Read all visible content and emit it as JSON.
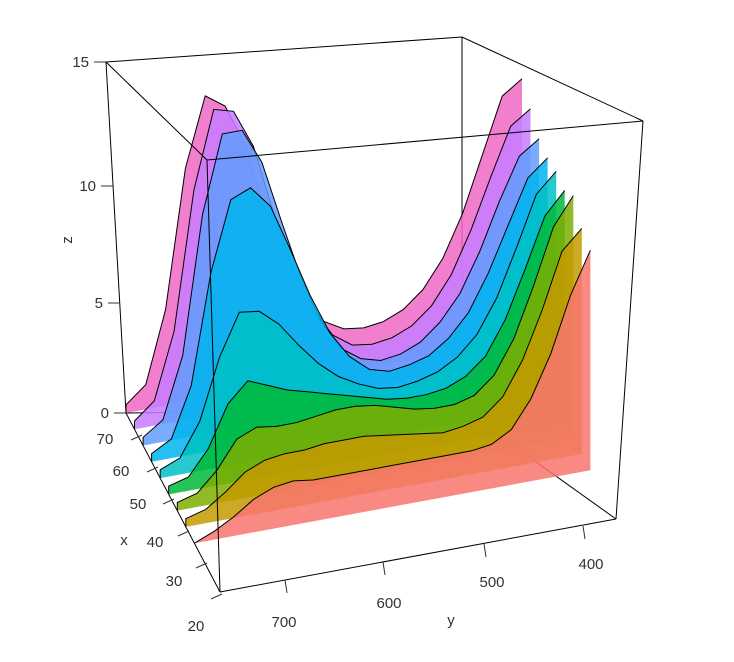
{
  "chart_data": {
    "type": "area",
    "subtype": "3d-ribbon",
    "axes": {
      "x": {
        "label": "x",
        "ticks": [
          20,
          30,
          40,
          50,
          60,
          70
        ],
        "range": [
          20,
          75
        ]
      },
      "y": {
        "label": "y",
        "ticks": [
          700,
          600,
          500,
          400
        ],
        "range": [
          760,
          360
        ],
        "reversed": true
      },
      "z": {
        "label": "z",
        "ticks": [
          0,
          5,
          10,
          15
        ],
        "range": [
          0,
          15
        ]
      }
    },
    "grid": false,
    "legend": "none",
    "y": [
      760,
      740,
      720,
      700,
      680,
      660,
      640,
      620,
      600,
      580,
      560,
      540,
      520,
      500,
      480,
      460,
      440,
      420,
      400,
      380,
      360
    ],
    "series": [
      {
        "x": 75,
        "color": "#F067C6",
        "values": [
          0.3,
          0.9,
          3.5,
          8.5,
          11.0,
          10.5,
          9.0,
          6.5,
          4.5,
          3.0,
          2.0,
          1.6,
          1.5,
          1.6,
          1.9,
          2.5,
          3.5,
          5.0,
          7.0,
          9.0,
          9.5
        ]
      },
      {
        "x": 70,
        "color": "#C77CFF",
        "values": [
          0.3,
          0.9,
          3.3,
          8.3,
          11.1,
          10.9,
          9.5,
          7.0,
          4.8,
          3.2,
          2.1,
          1.6,
          1.5,
          1.6,
          1.9,
          2.5,
          3.5,
          5.0,
          6.8,
          8.5,
          9.0
        ]
      },
      {
        "x": 65,
        "color": "#619CFF",
        "values": [
          0.3,
          0.8,
          3.0,
          8.0,
          10.8,
          10.8,
          9.5,
          7.2,
          5.0,
          3.3,
          2.2,
          1.7,
          1.5,
          1.6,
          1.9,
          2.5,
          3.4,
          4.8,
          6.5,
          8.0,
          8.5
        ]
      },
      {
        "x": 60,
        "color": "#00B4EF",
        "values": [
          0.3,
          0.7,
          2.5,
          6.5,
          9.0,
          9.3,
          8.5,
          6.8,
          5.0,
          3.5,
          2.5,
          1.9,
          1.7,
          1.8,
          2.0,
          2.5,
          3.3,
          4.6,
          6.2,
          7.8,
          8.4
        ]
      },
      {
        "x": 55,
        "color": "#00BFC4",
        "values": [
          0.3,
          0.6,
          1.8,
          4.0,
          5.5,
          5.4,
          4.8,
          3.9,
          3.1,
          2.5,
          2.1,
          1.8,
          1.7,
          1.8,
          2.0,
          2.4,
          3.1,
          4.3,
          6.0,
          7.8,
          8.5
        ]
      },
      {
        "x": 50,
        "color": "#00BA38",
        "values": [
          0.3,
          0.5,
          1.4,
          2.9,
          3.6,
          3.3,
          3.0,
          2.8,
          2.6,
          2.4,
          2.2,
          2.0,
          1.9,
          1.9,
          2.0,
          2.3,
          2.9,
          4.1,
          5.8,
          7.6,
          8.4
        ]
      },
      {
        "x": 45,
        "color": "#7CAE00",
        "values": [
          0.3,
          0.5,
          1.2,
          2.2,
          2.5,
          2.4,
          2.4,
          2.5,
          2.6,
          2.6,
          2.5,
          2.3,
          2.1,
          2.0,
          2.0,
          2.2,
          2.8,
          4.0,
          5.8,
          7.8,
          8.8
        ]
      },
      {
        "x": 40,
        "color": "#C49A00",
        "values": [
          0.3,
          0.5,
          1.0,
          1.6,
          1.9,
          2.0,
          2.0,
          2.1,
          2.1,
          2.1,
          2.0,
          1.9,
          1.8,
          1.7,
          1.8,
          2.0,
          2.6,
          3.8,
          5.5,
          7.5,
          8.2
        ]
      },
      {
        "x": 35,
        "color": "#F8766D",
        "values": [
          0.0,
          0.3,
          0.7,
          1.2,
          1.5,
          1.6,
          1.5,
          1.5,
          1.5,
          1.5,
          1.5,
          1.5,
          1.5,
          1.5,
          1.5,
          1.6,
          2.0,
          3.0,
          4.5,
          6.5,
          8.0
        ]
      }
    ]
  }
}
